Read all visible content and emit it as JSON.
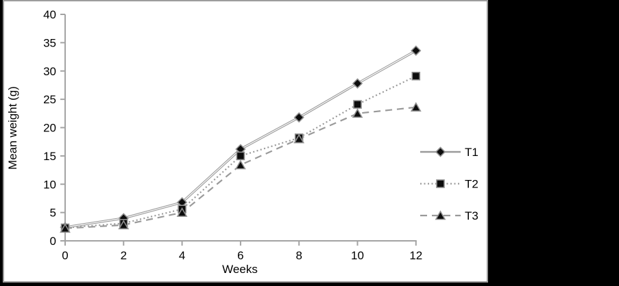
{
  "window": {
    "background_color": "#000000",
    "panel_background": "#ffffff",
    "panel_border_color": "#9d9d9d"
  },
  "chart_data": {
    "type": "line",
    "title": "",
    "xlabel": "Weeks",
    "ylabel": "Mean weight (g)",
    "x": [
      0,
      2,
      4,
      6,
      8,
      10,
      12
    ],
    "x_ticks": [
      0,
      2,
      4,
      6,
      8,
      10,
      12
    ],
    "y_ticks": [
      0,
      5,
      10,
      15,
      20,
      25,
      30,
      35,
      40
    ],
    "xlim": [
      0,
      12
    ],
    "ylim": [
      0,
      40
    ],
    "grid": false,
    "legend_position": "right-middle",
    "series": [
      {
        "name": "T1",
        "marker": "diamond",
        "line_style": "solid",
        "values": [
          2.4,
          4.0,
          6.8,
          16.2,
          21.8,
          27.8,
          33.6
        ]
      },
      {
        "name": "T2",
        "marker": "square",
        "line_style": "dotted",
        "values": [
          2.3,
          3.1,
          5.6,
          15.0,
          18.2,
          24.1,
          29.1
        ]
      },
      {
        "name": "T3",
        "marker": "triangle",
        "line_style": "dashed",
        "values": [
          2.2,
          2.8,
          5.0,
          13.4,
          18.0,
          22.5,
          23.6
        ]
      }
    ],
    "colors": {
      "line": "#9a9a9a",
      "line_core": "#ffffff",
      "marker_fill": "#0d0d0d",
      "marker_stroke": "#8f8f8f",
      "axis": "#a3a3a3",
      "text": "#000000"
    }
  }
}
